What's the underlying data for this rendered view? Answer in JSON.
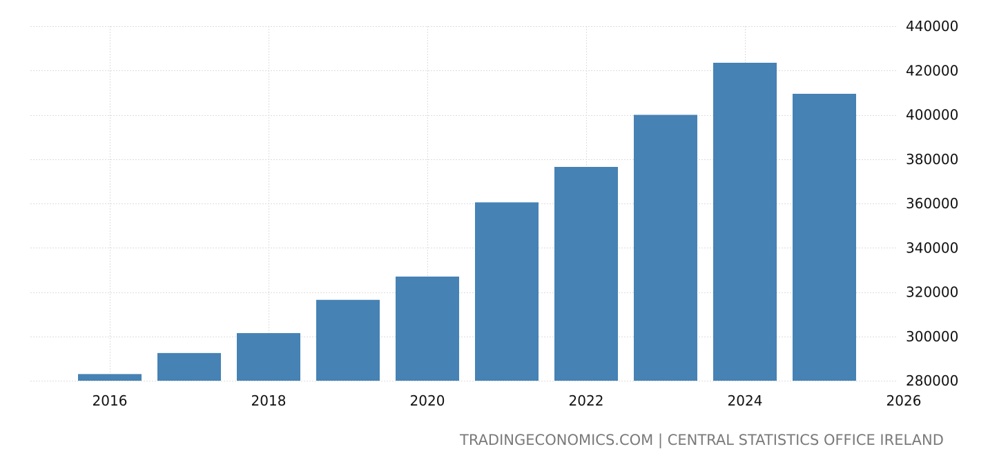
{
  "chart_data": {
    "type": "bar",
    "x": [
      2016,
      2017,
      2018,
      2019,
      2020,
      2021,
      2022,
      2023,
      2024,
      2025
    ],
    "values": [
      283000,
      292500,
      301500,
      316500,
      327000,
      360500,
      376500,
      400000,
      423500,
      409500
    ],
    "xticks": [
      "2016",
      "2018",
      "2020",
      "2022",
      "2024",
      "2026"
    ],
    "yticks": [
      "280000",
      "300000",
      "320000",
      "340000",
      "360000",
      "380000",
      "400000",
      "420000",
      "440000"
    ],
    "ylim": [
      280000,
      440000
    ],
    "xlim": [
      2015,
      2027
    ],
    "grid": true,
    "bar_color": "#4682b4",
    "grid_color": "#dcdcdc",
    "title": "",
    "xlabel": "",
    "ylabel": ""
  },
  "source": {
    "text": "TRADINGECONOMICS.COM | CENTRAL STATISTICS OFFICE IRELAND"
  }
}
